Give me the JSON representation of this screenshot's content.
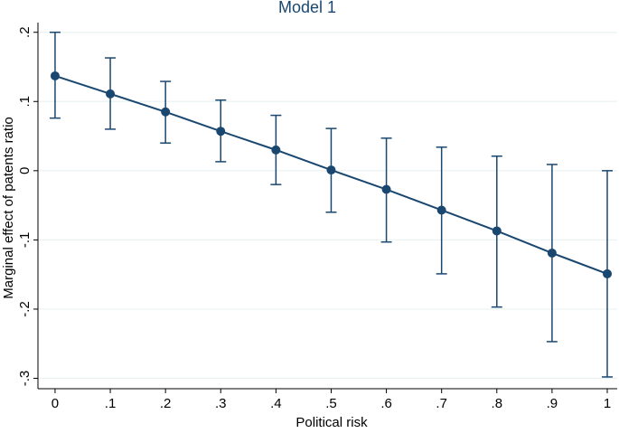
{
  "chart_data": {
    "type": "errorbar-line",
    "title": "Model 1",
    "x_label": "Political risk",
    "y_label": "Marginal effect of patents ratio",
    "x": [
      0,
      0.1,
      0.2,
      0.3,
      0.4,
      0.5,
      0.6,
      0.7,
      0.8,
      0.9,
      1
    ],
    "values": [
      0.137,
      0.111,
      0.085,
      0.057,
      0.03,
      0.001,
      -0.027,
      -0.057,
      -0.087,
      -0.119,
      -0.149
    ],
    "ci_lower": [
      0.076,
      0.06,
      0.04,
      0.013,
      -0.02,
      -0.06,
      -0.103,
      -0.149,
      -0.197,
      -0.247,
      -0.298
    ],
    "ci_upper": [
      0.2,
      0.163,
      0.129,
      0.102,
      0.08,
      0.061,
      0.047,
      0.034,
      0.021,
      0.009,
      0.0
    ],
    "color": "#1a476f",
    "xlim": [
      -0.031,
      1.018
    ],
    "ylim": [
      -0.315,
      0.214
    ],
    "xticks": [
      0,
      {
        "value": 0.1,
        "label": ".1"
      },
      {
        "value": 0.2,
        "label": ".2"
      },
      {
        "value": 0.3,
        "label": ".3"
      },
      {
        "value": 0.4,
        "label": ".4"
      },
      {
        "value": 0.5,
        "label": ".5"
      },
      {
        "value": 0.6,
        "label": ".6"
      },
      {
        "value": 0.7,
        "label": ".7"
      },
      {
        "value": 0.8,
        "label": ".8"
      },
      {
        "value": 0.9,
        "label": ".9"
      },
      1
    ],
    "yticks": [
      {
        "value": -0.3,
        "label": "-.3"
      },
      {
        "value": -0.2,
        "label": "-.2"
      },
      {
        "value": -0.1,
        "label": "-.1"
      },
      0,
      {
        "value": 0.1,
        "label": ".1"
      },
      {
        "value": 0.2,
        "label": ".2"
      }
    ],
    "grid": true
  }
}
